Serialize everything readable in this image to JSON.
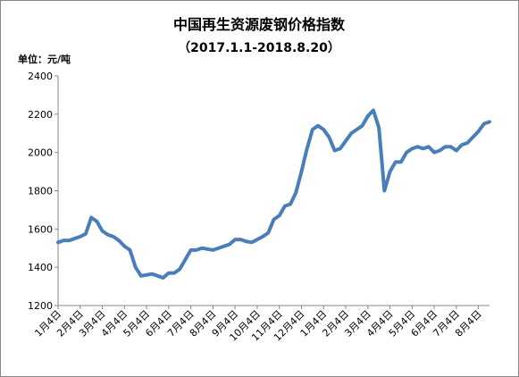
{
  "chart_data": {
    "type": "line",
    "title": "中国再生资源废钢价格指数",
    "subtitle": "（2017.1.1-2018.8.20）",
    "unit_label": "单位：元/吨",
    "categories": [
      "1月4日",
      null,
      null,
      null,
      "2月4日",
      null,
      null,
      null,
      "3月4日",
      null,
      null,
      null,
      "4月4日",
      null,
      null,
      null,
      "5月4日",
      null,
      null,
      null,
      "6月4日",
      null,
      null,
      null,
      "7月4日",
      null,
      null,
      null,
      "8月4日",
      null,
      null,
      null,
      "9月4日",
      null,
      null,
      null,
      "10月4日",
      null,
      null,
      null,
      "11月4日",
      null,
      null,
      null,
      "12月4日",
      null,
      null,
      null,
      "1月4日",
      null,
      null,
      null,
      "2月4日",
      null,
      null,
      null,
      "3月4日",
      null,
      null,
      null,
      "4月4日",
      null,
      null,
      null,
      "5月4日",
      null,
      null,
      null,
      "6月4日",
      null,
      null,
      null,
      "7月4日",
      null,
      null,
      null,
      "8月4日",
      null,
      null
    ],
    "values": [
      1530,
      1540,
      1540,
      1550,
      1560,
      1575,
      1660,
      1640,
      1590,
      1570,
      1560,
      1540,
      1510,
      1490,
      1400,
      1355,
      1360,
      1365,
      1355,
      1345,
      1370,
      1370,
      1390,
      1440,
      1490,
      1490,
      1500,
      1495,
      1490,
      1500,
      1510,
      1520,
      1545,
      1545,
      1535,
      1530,
      1545,
      1560,
      1580,
      1650,
      1670,
      1720,
      1730,
      1790,
      1900,
      2020,
      2120,
      2140,
      2120,
      2080,
      2010,
      2020,
      2060,
      2100,
      2120,
      2140,
      2190,
      2220,
      2130,
      1800,
      1900,
      1950,
      1950,
      2000,
      2020,
      2030,
      2020,
      2030,
      2000,
      2010,
      2030,
      2030,
      2010,
      2040,
      2050,
      2080,
      2110,
      2150,
      2160
    ],
    "color": "#4a7ebb",
    "ylim": [
      1200,
      2400
    ],
    "yticks": [
      1200,
      1400,
      1600,
      1800,
      2000,
      2200,
      2400
    ],
    "grid": false
  }
}
